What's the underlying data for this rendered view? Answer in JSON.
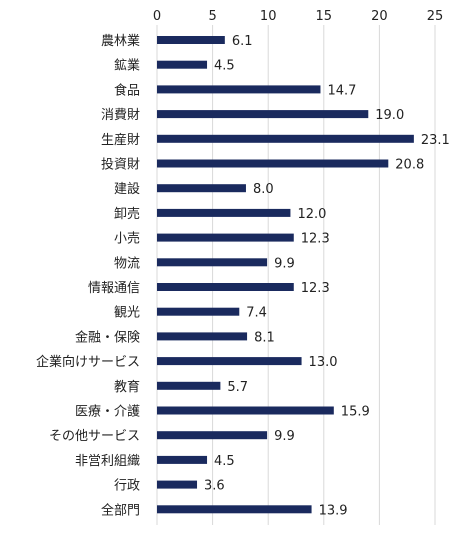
{
  "chart_data": {
    "type": "bar",
    "orientation": "horizontal",
    "categories": [
      "農林業",
      "鉱業",
      "食品",
      "消費財",
      "生産財",
      "投資財",
      "建設",
      "卸売",
      "小売",
      "物流",
      "情報通信",
      "観光",
      "金融・保険",
      "企業向けサービス",
      "教育",
      "医療・介護",
      "その他サービス",
      "非営利組織",
      "行政",
      "全部門"
    ],
    "values": [
      6.1,
      4.5,
      14.7,
      19.0,
      23.1,
      20.8,
      8.0,
      12.0,
      12.3,
      9.9,
      12.3,
      7.4,
      8.1,
      13.0,
      5.7,
      15.9,
      9.9,
      4.5,
      3.6,
      13.9
    ],
    "value_labels": [
      "6.1",
      "4.5",
      "14.7",
      "19.0",
      "23.1",
      "20.8",
      "8.0",
      "12.0",
      "12.3",
      "9.9",
      "12.3",
      "7.4",
      "8.1",
      "13.0",
      "5.7",
      "15.9",
      "9.9",
      "4.5",
      "3.6",
      "13.9"
    ],
    "xlim": [
      0,
      25
    ],
    "xticks": [
      "0",
      "5",
      "10",
      "15",
      "20",
      "25"
    ],
    "x_axis_position": "top",
    "grid": "vertical",
    "bar_color": "#1a2a5e",
    "grid_color": "#d9d9d9",
    "title": "",
    "xlabel": "",
    "ylabel": ""
  }
}
